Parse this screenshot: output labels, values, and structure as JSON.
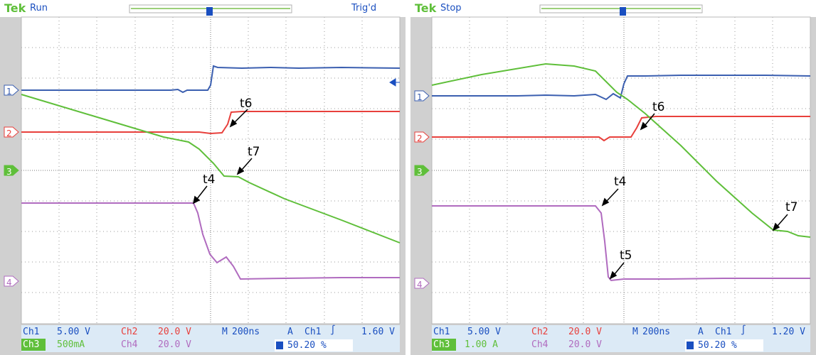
{
  "scopes": [
    {
      "brand": "Tek",
      "state": "Run",
      "trigger_status": "Trig'd",
      "annotations": [
        "t4",
        "t6",
        "t7"
      ],
      "channel_markers": [
        "1",
        "2",
        "3",
        "4"
      ],
      "readouts": {
        "ch1_label": "Ch1",
        "ch1_scale": "5.00 V",
        "ch2_label": "Ch2",
        "ch2_scale": "20.0 V",
        "ch3_label": "Ch3",
        "ch3_scale": "500mA",
        "ch4_label": "Ch4",
        "ch4_scale": "20.0 V",
        "timebase_label": "M",
        "timebase": "200ns",
        "trigger_mode": "A",
        "trigger_source": "Ch1",
        "trigger_level": "1.60 V",
        "position": "50.20 %"
      }
    },
    {
      "brand": "Tek",
      "state": "Stop",
      "trigger_status": "",
      "annotations": [
        "t4",
        "t5",
        "t6",
        "t7"
      ],
      "channel_markers": [
        "1",
        "2",
        "3",
        "4"
      ],
      "readouts": {
        "ch1_label": "Ch1",
        "ch1_scale": "5.00 V",
        "ch2_label": "Ch2",
        "ch2_scale": "20.0 V",
        "ch3_label": "Ch3",
        "ch3_scale": "1.00 A",
        "ch4_label": "Ch4",
        "ch4_scale": "20.0 V",
        "timebase_label": "M",
        "timebase": "200ns",
        "trigger_mode": "A",
        "trigger_source": "Ch1",
        "trigger_level": "1.20 V",
        "position": "50.20 %"
      }
    }
  ],
  "colors": {
    "ch1": "#3b5fb0",
    "ch2": "#e8403c",
    "ch3": "#5fbf3a",
    "ch4": "#b06bbf",
    "frame": "#c8c8c8",
    "grid": "#9a9a9a",
    "readout_bg": "#dceaf6",
    "tek_green": "#5fbf3a"
  }
}
